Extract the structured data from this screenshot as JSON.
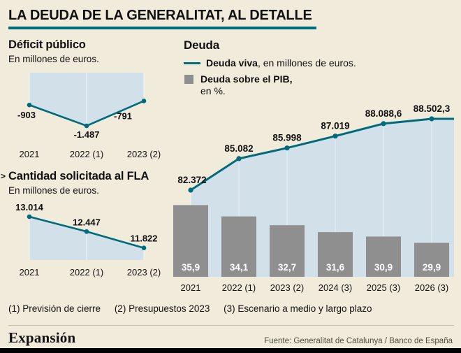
{
  "header": {
    "title": "LA DEUDA DE LA GENERALITAT, AL DETALLE"
  },
  "colors": {
    "teal": "#006b7d",
    "area": "#d2e1e9",
    "bar": "#8f8f8f",
    "background": "#f0ebdb",
    "label": "#111111",
    "bar_label": "#ffffff"
  },
  "chart_data": [
    {
      "id": "deficit-publico",
      "type": "area",
      "title": "Déficit público",
      "subtitle": "En millones de euros.",
      "categories": [
        "2021",
        "2022 (1)",
        "2023 (2)"
      ],
      "values": [
        -903,
        -1487,
        -791
      ],
      "labels": [
        "-903",
        "-1.487",
        "-791"
      ],
      "baseline": 0,
      "ylim": [
        -1487,
        0
      ]
    },
    {
      "id": "cantidad-solicitada-fla",
      "type": "area",
      "title": "Cantidad solicitada al FLA",
      "subtitle": "En millones de euros.",
      "categories": [
        "2021",
        "2022 (1)",
        "2023 (2)"
      ],
      "values": [
        13014,
        12447,
        11822
      ],
      "labels": [
        "13.014",
        "12.447",
        "11.822"
      ]
    },
    {
      "id": "deuda",
      "type": "combo",
      "title": "Deuda",
      "categories": [
        "2021",
        "2022 (1)",
        "2023 (2)",
        "2024 (3)",
        "2025 (3)",
        "2026 (3)"
      ],
      "series": [
        {
          "name": "Deuda viva, en millones de euros.",
          "type": "line",
          "values": [
            82372,
            85082,
            85998,
            87019,
            88088.6,
            88502.3
          ],
          "labels": [
            "82.372",
            "85.082",
            "85.998",
            "87.019",
            "88.088,6",
            "88.502,3"
          ]
        },
        {
          "name": "Deuda sobre el PIB, en %",
          "type": "bar",
          "values": [
            35.9,
            34.1,
            32.7,
            31.6,
            30.9,
            29.9
          ],
          "labels": [
            "35,9",
            "34,1",
            "32,7",
            "31,6",
            "30,9",
            "29,9"
          ]
        }
      ],
      "legend": [
        {
          "bold": "Deuda viva",
          "rest": ", en millones de euros."
        },
        {
          "bold": "Deuda sobre el PIB,",
          "rest": "en %."
        }
      ]
    }
  ],
  "footnotes": {
    "note1": "(1) Previsión de cierre",
    "note2": "(2) Presupuestos 2023",
    "note3": "(3) Escenario a medio y largo plazo"
  },
  "footer": {
    "brand": "Expansión",
    "source": "Fuente: Generalitat de Catalunya / Banco de España"
  }
}
